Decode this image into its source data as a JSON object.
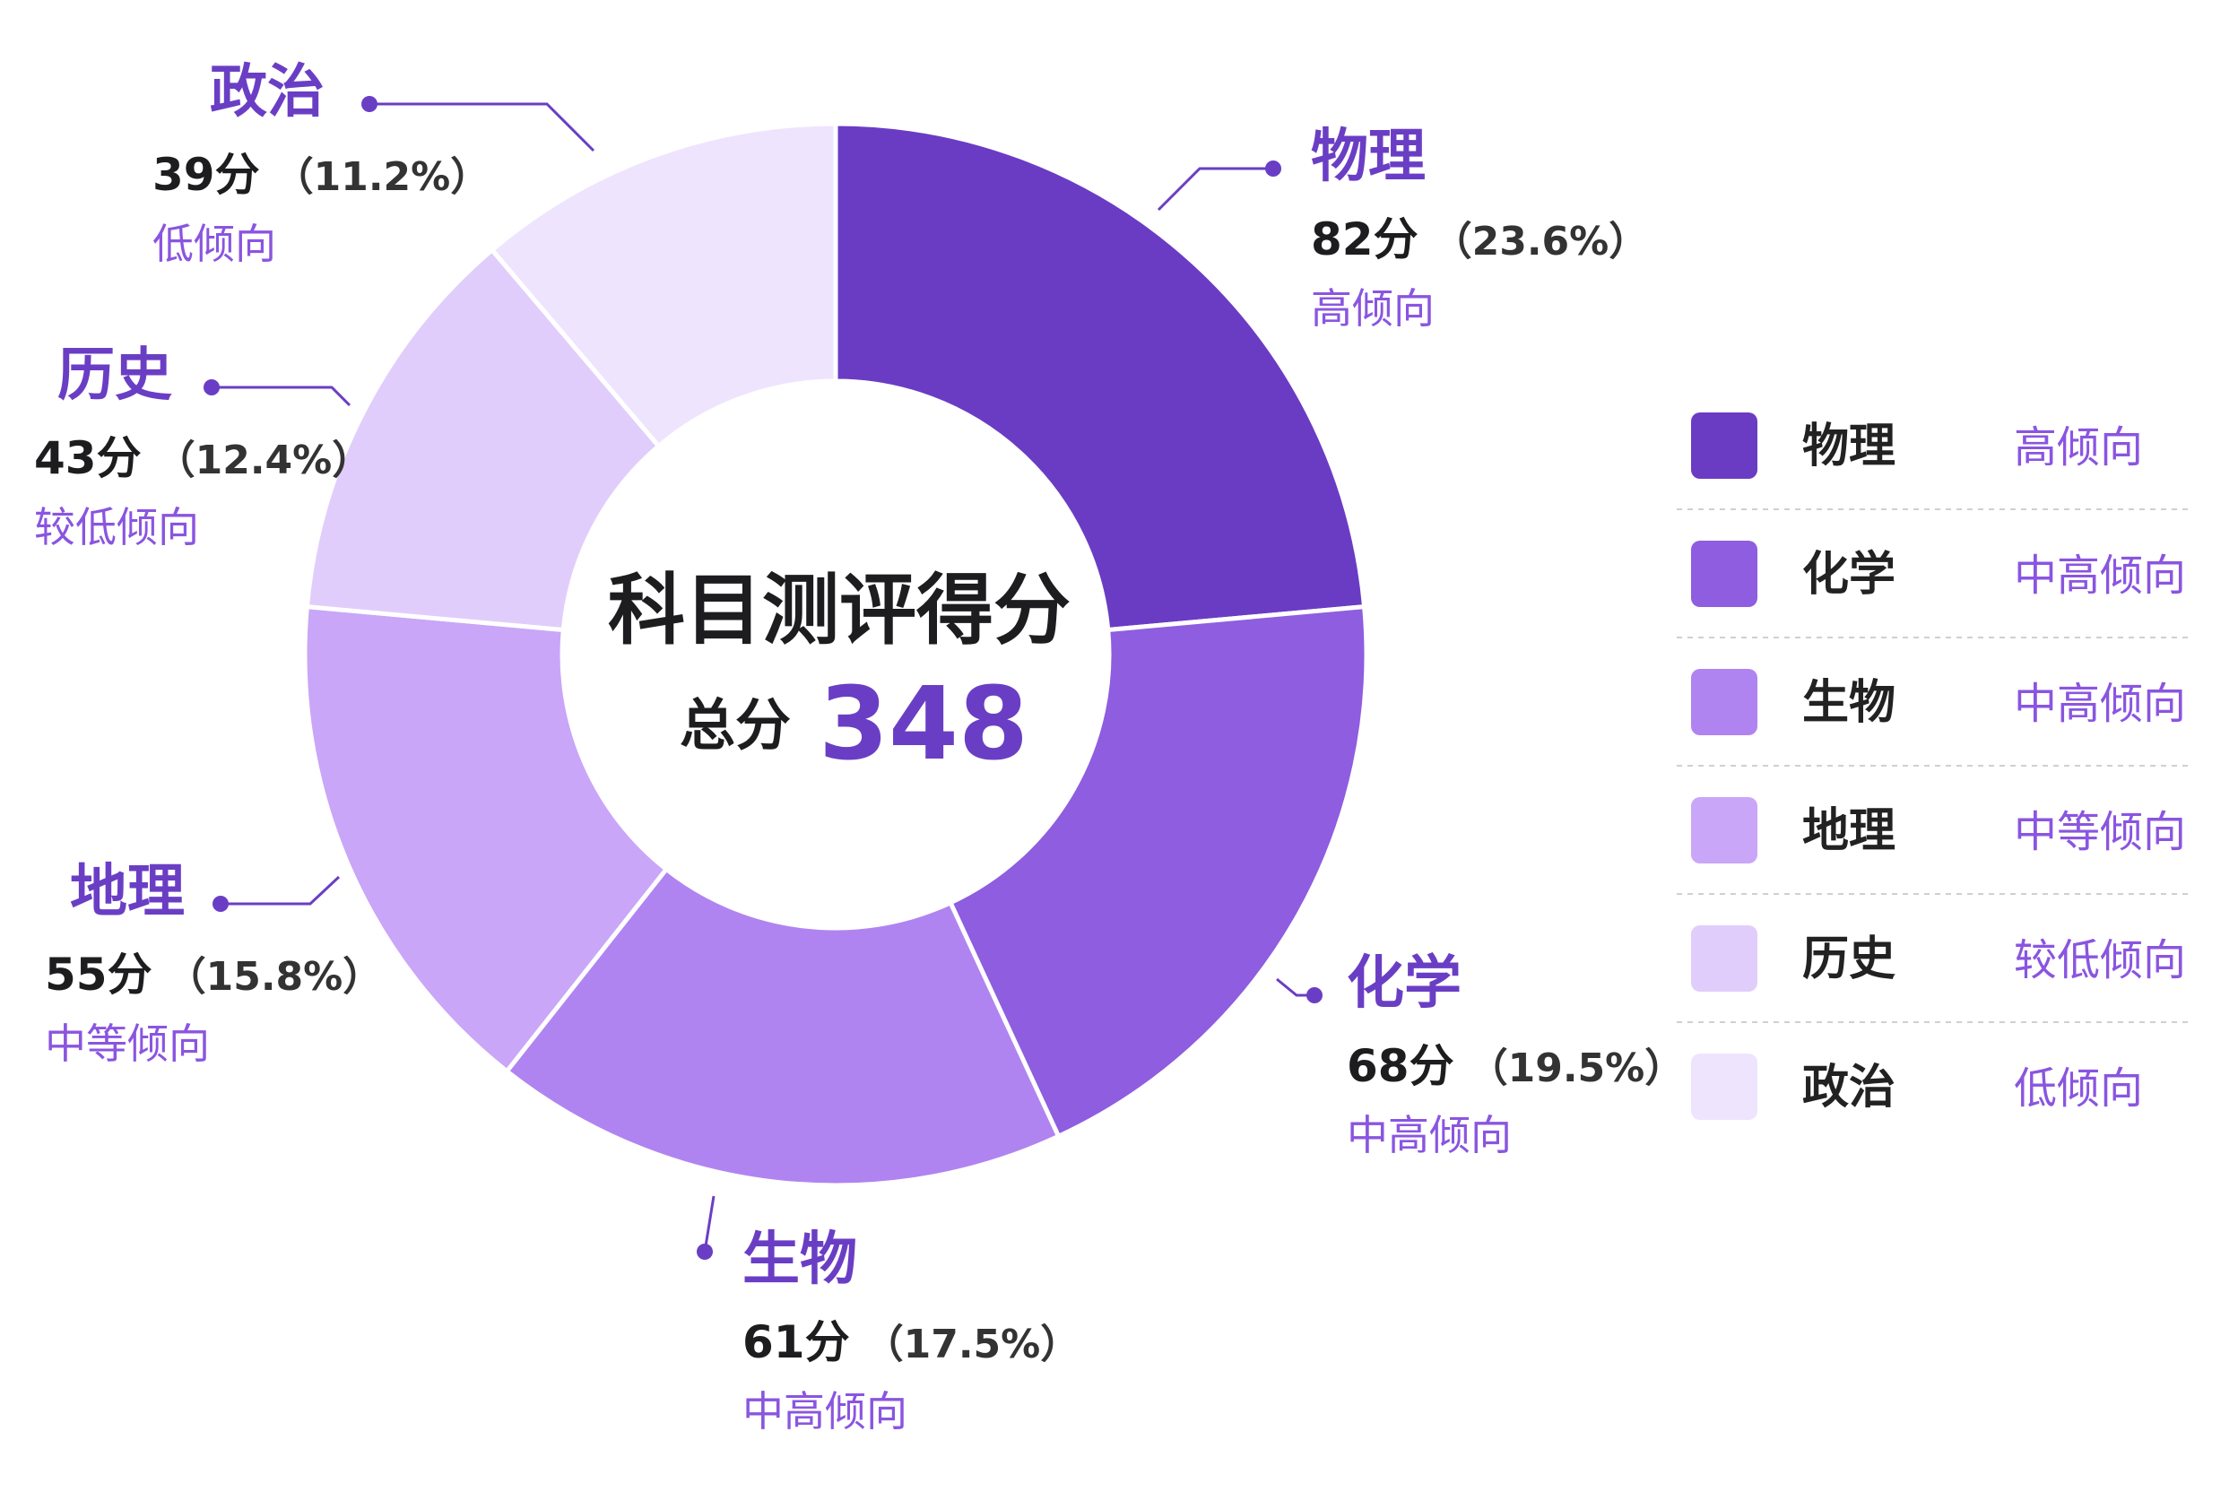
{
  "chart_data": {
    "type": "pie",
    "center": {
      "title": "科目测评得分",
      "total_label": "总分",
      "total_value": "348"
    },
    "score_unit": "分",
    "series": [
      {
        "name": "物理",
        "value": 82,
        "percent": "23.6%",
        "level": "高倾向",
        "color": "#6a3cc4"
      },
      {
        "name": "化学",
        "value": 68,
        "percent": "19.5%",
        "level": "中高倾向",
        "color": "#8e5de0"
      },
      {
        "name": "生物",
        "value": 61,
        "percent": "17.5%",
        "level": "中高倾向",
        "color": "#b084f0"
      },
      {
        "name": "地理",
        "value": 55,
        "percent": "15.8%",
        "level": "中等倾向",
        "color": "#c9a6f7"
      },
      {
        "name": "历史",
        "value": 43,
        "percent": "12.4%",
        "level": "较低倾向",
        "color": "#e1cdfb"
      },
      {
        "name": "政治",
        "value": 39,
        "percent": "11.2%",
        "level": "低倾向",
        "color": "#efe4fd"
      }
    ],
    "legend": {
      "placement": "right",
      "items": [
        {
          "subject": "物理",
          "level": "高倾向",
          "color": "#6a3cc4"
        },
        {
          "subject": "化学",
          "level": "中高倾向",
          "color": "#8e5de0"
        },
        {
          "subject": "生物",
          "level": "中高倾向",
          "color": "#b084f0"
        },
        {
          "subject": "地理",
          "level": "中等倾向",
          "color": "#c9a6f7"
        },
        {
          "subject": "历史",
          "level": "较低倾向",
          "color": "#e1cdfb"
        },
        {
          "subject": "政治",
          "level": "低倾向",
          "color": "#efe4fd"
        }
      ]
    },
    "accent_color": "#6a3ec4"
  }
}
